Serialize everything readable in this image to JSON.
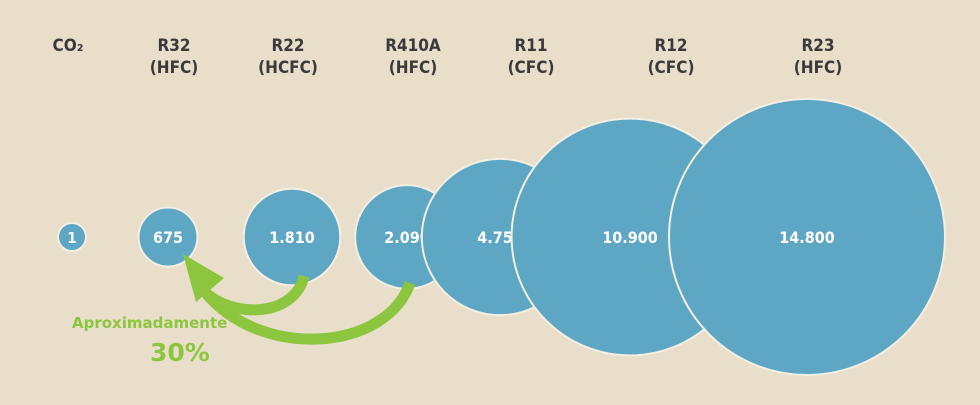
{
  "chart_data": {
    "type": "bubble",
    "title": "",
    "categories": [
      {
        "name": "CO₂",
        "type": "",
        "value": 1,
        "label": "1"
      },
      {
        "name": "R32",
        "type": "(HFC)",
        "value": 675,
        "label": "675"
      },
      {
        "name": "R22",
        "type": "(HCFC)",
        "value": 1810,
        "label": "1.810"
      },
      {
        "name": "R410A",
        "type": "(HFC)",
        "value": 2090,
        "label": "2.090"
      },
      {
        "name": "R11",
        "type": "(CFC)",
        "value": 4750,
        "label": "4.750"
      },
      {
        "name": "R12",
        "type": "(CFC)",
        "value": 10900,
        "label": "10.900"
      },
      {
        "name": "R23",
        "type": "(HFC)",
        "value": 14800,
        "label": "14.800"
      }
    ],
    "annotation": {
      "text": "Aproximadamente",
      "value": "30%"
    }
  },
  "colors": {
    "bubble": "#5ea7c4",
    "arrow": "#8cc63f",
    "background": "#e8dec9"
  }
}
